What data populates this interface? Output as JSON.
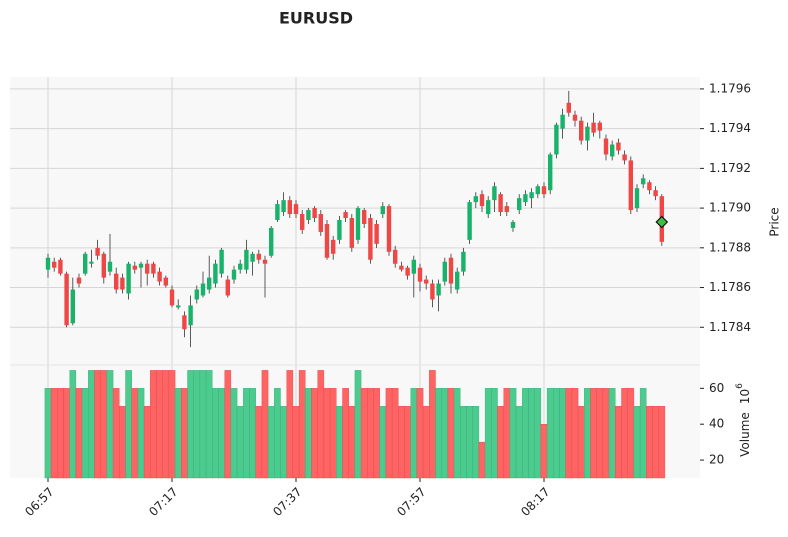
{
  "chart_data": {
    "type": "candlestick",
    "title": "EURUSD",
    "ylabel": "Price",
    "volume_label": "Volume",
    "volume_scale": {
      "base": "10",
      "exponent": "6"
    },
    "categories": [
      "06:57",
      null,
      null,
      null,
      null,
      null,
      null,
      null,
      null,
      null,
      null,
      null,
      null,
      null,
      null,
      null,
      null,
      null,
      null,
      null,
      "07:17",
      null,
      null,
      null,
      null,
      null,
      null,
      null,
      null,
      null,
      null,
      null,
      null,
      null,
      null,
      null,
      null,
      null,
      null,
      null,
      "07:37",
      null,
      null,
      null,
      null,
      null,
      null,
      null,
      null,
      null,
      null,
      null,
      null,
      null,
      null,
      null,
      null,
      null,
      null,
      null,
      "07:57",
      null,
      null,
      null,
      null,
      null,
      null,
      null,
      null,
      null,
      null,
      null,
      null,
      null,
      null,
      null,
      null,
      null,
      null,
      null,
      "08:17",
      null,
      null,
      null,
      null,
      null,
      null,
      null,
      null,
      null,
      null,
      null,
      null,
      null,
      null,
      null,
      null,
      null,
      null,
      null
    ],
    "open": [
      1.17869,
      1.17873,
      1.17874,
      1.17867,
      1.17842,
      1.17865,
      1.17867,
      1.17872,
      1.1788,
      1.17877,
      1.17868,
      1.17867,
      1.17865,
      1.17857,
      1.17871,
      1.1787,
      1.17872,
      1.17872,
      1.17868,
      1.17865,
      1.17859,
      1.1785,
      1.17846,
      1.17841,
      1.17854,
      1.17856,
      1.17859,
      1.17862,
      1.17867,
      1.17864,
      1.17864,
      1.17869,
      1.17869,
      1.17873,
      1.17877,
      1.17874,
      1.17876,
      1.17894,
      1.17898,
      1.17904,
      1.17902,
      1.17897,
      1.17894,
      1.179,
      1.17897,
      1.17892,
      1.17884,
      1.17884,
      1.17898,
      1.17895,
      1.17884,
      1.17899,
      1.17895,
      1.17892,
      1.17897,
      1.17901,
      1.17879,
      1.17871,
      1.1787,
      1.17867,
      1.1787,
      1.17864,
      1.17862,
      1.17856,
      1.17863,
      1.17875,
      1.17859,
      1.17868,
      1.17884,
      1.17903,
      1.17907,
      1.17897,
      1.17904,
      1.17907,
      1.17901,
      1.1789,
      1.17899,
      1.17903,
      1.17905,
      1.17907,
      1.17911,
      1.17909,
      1.17927,
      1.1794,
      1.17953,
      1.17947,
      1.17944,
      1.17934,
      1.17943,
      1.17943,
      1.17935,
      1.17926,
      1.17933,
      1.17927,
      1.17924,
      1.179,
      1.17912,
      1.17913,
      1.17909,
      1.17906
    ],
    "high": [
      1.17877,
      1.17875,
      1.17875,
      1.17868,
      1.17865,
      1.17867,
      1.17878,
      1.17879,
      1.17884,
      1.17878,
      1.17887,
      1.1787,
      1.17867,
      1.17873,
      1.17873,
      1.17873,
      1.17874,
      1.17873,
      1.1787,
      1.17866,
      1.17861,
      1.17854,
      1.17848,
      1.17856,
      1.17861,
      1.17868,
      1.17876,
      1.17874,
      1.1788,
      1.17866,
      1.17871,
      1.17874,
      1.17884,
      1.17878,
      1.17879,
      1.17876,
      1.17891,
      1.17904,
      1.17908,
      1.17906,
      1.17904,
      1.17899,
      1.179,
      1.17901,
      1.17899,
      1.17894,
      1.17886,
      1.17896,
      1.17899,
      1.17897,
      1.17901,
      1.179,
      1.17897,
      1.17894,
      1.17903,
      1.17902,
      1.17881,
      1.17873,
      1.17871,
      1.17876,
      1.17872,
      1.17866,
      1.17864,
      1.17864,
      1.17875,
      1.17877,
      1.1787,
      1.1788,
      1.17904,
      1.17908,
      1.17909,
      1.17906,
      1.17913,
      1.17908,
      1.17903,
      1.17894,
      1.17907,
      1.17909,
      1.1791,
      1.17912,
      1.17913,
      1.17928,
      1.17943,
      1.1795,
      1.17959,
      1.17949,
      1.17946,
      1.17943,
      1.17948,
      1.17944,
      1.17937,
      1.17934,
      1.17935,
      1.17929,
      1.17926,
      1.17912,
      1.17917,
      1.17914,
      1.17911,
      1.17907
    ],
    "low": [
      1.17865,
      1.17868,
      1.17866,
      1.1784,
      1.17841,
      1.1786,
      1.17866,
      1.1787,
      1.17874,
      1.17862,
      1.17866,
      1.17857,
      1.17857,
      1.17854,
      1.17867,
      1.1786,
      1.17861,
      1.17865,
      1.17861,
      1.1786,
      1.1785,
      1.17849,
      1.17835,
      1.1783,
      1.17852,
      1.17855,
      1.17857,
      1.1786,
      1.17865,
      1.17855,
      1.17862,
      1.17867,
      1.17867,
      1.17866,
      1.17872,
      1.17855,
      1.17875,
      1.17893,
      1.17896,
      1.17895,
      1.17895,
      1.17887,
      1.17892,
      1.17893,
      1.17886,
      1.17874,
      1.17874,
      1.17882,
      1.17893,
      1.17878,
      1.17882,
      1.1789,
      1.17872,
      1.1788,
      1.17895,
      1.17876,
      1.1787,
      1.17868,
      1.17864,
      1.17855,
      1.17858,
      1.17859,
      1.1785,
      1.17848,
      1.17861,
      1.17857,
      1.17857,
      1.17866,
      1.17882,
      1.179,
      1.17898,
      1.17895,
      1.17898,
      1.17896,
      1.17896,
      1.17888,
      1.17897,
      1.17901,
      1.179,
      1.17905,
      1.17905,
      1.17907,
      1.17925,
      1.17935,
      1.17946,
      1.17941,
      1.17932,
      1.17929,
      1.17936,
      1.17935,
      1.17924,
      1.17924,
      1.17927,
      1.17922,
      1.17897,
      1.17898,
      1.1791,
      1.17907,
      1.17904,
      1.17881
    ],
    "close": [
      1.17875,
      1.1787,
      1.17867,
      1.17841,
      1.17859,
      1.17862,
      1.17877,
      1.17873,
      1.17876,
      1.17865,
      1.17873,
      1.17859,
      1.17859,
      1.17872,
      1.17869,
      1.17872,
      1.17867,
      1.17867,
      1.17863,
      1.17861,
      1.17851,
      1.17851,
      1.17839,
      1.17851,
      1.17859,
      1.17862,
      1.17865,
      1.17872,
      1.17879,
      1.17856,
      1.17869,
      1.17872,
      1.17879,
      1.17877,
      1.17874,
      1.17872,
      1.1789,
      1.17902,
      1.17904,
      1.17897,
      1.17897,
      1.17889,
      1.17899,
      1.17895,
      1.17888,
      1.17875,
      1.17877,
      1.17894,
      1.17895,
      1.1788,
      1.179,
      1.17892,
      1.17874,
      1.17882,
      1.17901,
      1.17878,
      1.17872,
      1.17869,
      1.17866,
      1.17874,
      1.17863,
      1.17862,
      1.17854,
      1.17862,
      1.17873,
      1.17862,
      1.17868,
      1.17878,
      1.17903,
      1.17906,
      1.17901,
      1.17904,
      1.17911,
      1.17898,
      1.17898,
      1.17893,
      1.17905,
      1.17907,
      1.17908,
      1.17911,
      1.17907,
      1.17927,
      1.17942,
      1.17947,
      1.17948,
      1.17944,
      1.17934,
      1.17941,
      1.17938,
      1.17939,
      1.17927,
      1.17932,
      1.17929,
      1.17924,
      1.17899,
      1.1791,
      1.17915,
      1.17909,
      1.17906,
      1.17883
    ],
    "volume": [
      60,
      60,
      60,
      60,
      70,
      60,
      60,
      70,
      70,
      70,
      70,
      60,
      50,
      70,
      60,
      60,
      50,
      70,
      70,
      70,
      70,
      60,
      60,
      70,
      70,
      70,
      70,
      60,
      60,
      70,
      60,
      50,
      60,
      60,
      50,
      70,
      50,
      60,
      50,
      70,
      50,
      70,
      60,
      60,
      70,
      60,
      60,
      50,
      60,
      50,
      70,
      60,
      60,
      60,
      50,
      60,
      60,
      50,
      50,
      60,
      60,
      50,
      70,
      60,
      60,
      60,
      60,
      50,
      50,
      50,
      30,
      60,
      60,
      50,
      60,
      60,
      50,
      60,
      60,
      60,
      40,
      60,
      60,
      60,
      60,
      60,
      50,
      60,
      60,
      60,
      60,
      60,
      50,
      60,
      60,
      50,
      60,
      50,
      50,
      50
    ],
    "marker": {
      "color": "#3fbf3f",
      "values": [
        null,
        null,
        null,
        null,
        null,
        null,
        null,
        null,
        null,
        null,
        null,
        null,
        null,
        null,
        null,
        null,
        null,
        null,
        null,
        null,
        null,
        null,
        null,
        null,
        null,
        null,
        null,
        null,
        null,
        null,
        null,
        null,
        null,
        null,
        null,
        null,
        null,
        null,
        null,
        null,
        null,
        null,
        null,
        null,
        null,
        null,
        null,
        null,
        null,
        null,
        null,
        null,
        null,
        null,
        null,
        null,
        null,
        null,
        null,
        null,
        null,
        null,
        null,
        null,
        null,
        null,
        null,
        null,
        null,
        null,
        null,
        null,
        null,
        null,
        null,
        null,
        null,
        null,
        null,
        null,
        null,
        null,
        null,
        null,
        null,
        null,
        null,
        null,
        null,
        null,
        null,
        null,
        null,
        null,
        null,
        null,
        null,
        null,
        null,
        1.17893
      ]
    },
    "up_color": "#18b26b",
    "down_color": "#ef4646",
    "volume_up_color": "#4ccb8f",
    "volume_down_color": "#ff6464",
    "ylim": [
      1.17821,
      1.17966
    ],
    "yticks": [
      1.1784,
      1.1786,
      1.1788,
      {
        "value": 1.179,
        "label": "1.1790"
      },
      1.1792,
      1.1794,
      1.1796
    ],
    "volume_ylim": [
      10,
      73
    ],
    "volume_yticks": [
      20,
      40,
      60
    ],
    "grid": true
  }
}
